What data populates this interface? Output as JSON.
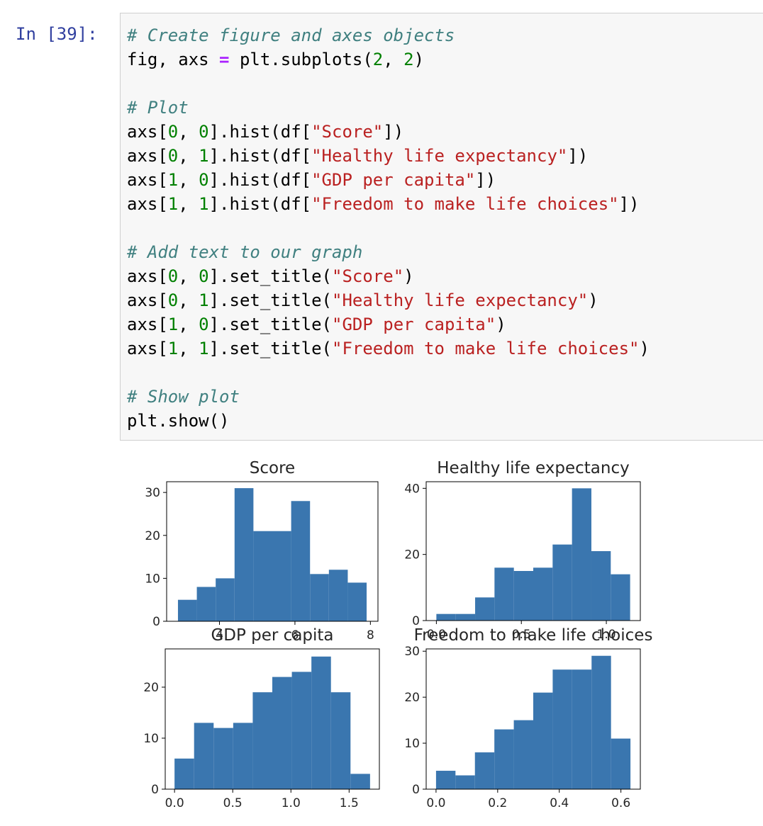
{
  "cell": {
    "prompt": "In [39]:",
    "lines": [
      [
        {
          "t": "cm",
          "v": "# Create figure and axes objects"
        }
      ],
      [
        {
          "t": "n",
          "v": "fig, axs "
        },
        {
          "t": "op",
          "v": "="
        },
        {
          "t": "n",
          "v": " plt.subplots("
        },
        {
          "t": "num",
          "v": "2"
        },
        {
          "t": "n",
          "v": ", "
        },
        {
          "t": "num",
          "v": "2"
        },
        {
          "t": "n",
          "v": ")"
        }
      ],
      [],
      [
        {
          "t": "cm",
          "v": "# Plot"
        }
      ],
      [
        {
          "t": "n",
          "v": "axs["
        },
        {
          "t": "num",
          "v": "0"
        },
        {
          "t": "n",
          "v": ", "
        },
        {
          "t": "num",
          "v": "0"
        },
        {
          "t": "n",
          "v": "].hist(df["
        },
        {
          "t": "str",
          "v": "\"Score\""
        },
        {
          "t": "n",
          "v": "])"
        }
      ],
      [
        {
          "t": "n",
          "v": "axs["
        },
        {
          "t": "num",
          "v": "0"
        },
        {
          "t": "n",
          "v": ", "
        },
        {
          "t": "num",
          "v": "1"
        },
        {
          "t": "n",
          "v": "].hist(df["
        },
        {
          "t": "str",
          "v": "\"Healthy life expectancy\""
        },
        {
          "t": "n",
          "v": "])"
        }
      ],
      [
        {
          "t": "n",
          "v": "axs["
        },
        {
          "t": "num",
          "v": "1"
        },
        {
          "t": "n",
          "v": ", "
        },
        {
          "t": "num",
          "v": "0"
        },
        {
          "t": "n",
          "v": "].hist(df["
        },
        {
          "t": "str",
          "v": "\"GDP per capita\""
        },
        {
          "t": "n",
          "v": "])"
        }
      ],
      [
        {
          "t": "n",
          "v": "axs["
        },
        {
          "t": "num",
          "v": "1"
        },
        {
          "t": "n",
          "v": ", "
        },
        {
          "t": "num",
          "v": "1"
        },
        {
          "t": "n",
          "v": "].hist(df["
        },
        {
          "t": "str",
          "v": "\"Freedom to make life choices\""
        },
        {
          "t": "n",
          "v": "])"
        }
      ],
      [],
      [
        {
          "t": "cm",
          "v": "# Add text to our graph"
        }
      ],
      [
        {
          "t": "n",
          "v": "axs["
        },
        {
          "t": "num",
          "v": "0"
        },
        {
          "t": "n",
          "v": ", "
        },
        {
          "t": "num",
          "v": "0"
        },
        {
          "t": "n",
          "v": "].set_title("
        },
        {
          "t": "str",
          "v": "\"Score\""
        },
        {
          "t": "n",
          "v": ")"
        }
      ],
      [
        {
          "t": "n",
          "v": "axs["
        },
        {
          "t": "num",
          "v": "0"
        },
        {
          "t": "n",
          "v": ", "
        },
        {
          "t": "num",
          "v": "1"
        },
        {
          "t": "n",
          "v": "].set_title("
        },
        {
          "t": "str",
          "v": "\"Healthy life expectancy\""
        },
        {
          "t": "n",
          "v": ")"
        }
      ],
      [
        {
          "t": "n",
          "v": "axs["
        },
        {
          "t": "num",
          "v": "1"
        },
        {
          "t": "n",
          "v": ", "
        },
        {
          "t": "num",
          "v": "0"
        },
        {
          "t": "n",
          "v": "].set_title("
        },
        {
          "t": "str",
          "v": "\"GDP per capita\""
        },
        {
          "t": "n",
          "v": ")"
        }
      ],
      [
        {
          "t": "n",
          "v": "axs["
        },
        {
          "t": "num",
          "v": "1"
        },
        {
          "t": "n",
          "v": ", "
        },
        {
          "t": "num",
          "v": "1"
        },
        {
          "t": "n",
          "v": "].set_title("
        },
        {
          "t": "str",
          "v": "\"Freedom to make life choices\""
        },
        {
          "t": "n",
          "v": ")"
        }
      ],
      [],
      [
        {
          "t": "cm",
          "v": "# Show plot"
        }
      ],
      [
        {
          "t": "n",
          "v": "plt.show()"
        }
      ]
    ]
  },
  "colors": {
    "bar": "#3a76af",
    "prompt": "#303f9f",
    "comment": "#408080",
    "string": "#ba2121",
    "number": "#008000",
    "operator": "#aa22ff"
  },
  "chart_data": [
    {
      "type": "bar",
      "title": "Score",
      "bin_edges": [
        2.9,
        3.4,
        3.9,
        4.4,
        4.9,
        5.4,
        5.9,
        6.4,
        6.9,
        7.4,
        7.9
      ],
      "values": [
        5,
        8,
        10,
        31,
        21,
        21,
        28,
        11,
        12,
        9
      ],
      "xlim": [
        2.6,
        8.2
      ],
      "ylim": [
        0,
        32.5
      ],
      "xticks": [
        "4",
        "6",
        "8"
      ],
      "xtick_values": [
        4,
        6,
        8
      ],
      "yticks": [
        "0",
        "10",
        "20",
        "30"
      ],
      "ytick_values": [
        0,
        10,
        20,
        30
      ]
    },
    {
      "type": "bar",
      "title": "Healthy life expectancy",
      "bin_edges": [
        0.0,
        0.114,
        0.228,
        0.342,
        0.456,
        0.57,
        0.684,
        0.798,
        0.912,
        1.026,
        1.14
      ],
      "values": [
        2,
        2,
        7,
        16,
        15,
        16,
        23,
        40,
        21,
        14
      ],
      "xlim": [
        -0.06,
        1.2
      ],
      "ylim": [
        0,
        42
      ],
      "xticks": [
        "0.0",
        "0.5",
        "1.0"
      ],
      "xtick_values": [
        0,
        0.5,
        1.0
      ],
      "yticks": [
        "0",
        "20",
        "40"
      ],
      "ytick_values": [
        0,
        20,
        40
      ]
    },
    {
      "type": "bar",
      "title": "GDP per capita",
      "bin_edges": [
        0.0,
        0.168,
        0.336,
        0.504,
        0.672,
        0.84,
        1.008,
        1.176,
        1.344,
        1.512,
        1.68
      ],
      "values": [
        6,
        13,
        12,
        13,
        19,
        22,
        23,
        26,
        19,
        3
      ],
      "xlim": [
        -0.08,
        1.76
      ],
      "ylim": [
        0,
        27.5
      ],
      "xticks": [
        "0.0",
        "0.5",
        "1.0",
        "1.5"
      ],
      "xtick_values": [
        0,
        0.5,
        1.0,
        1.5
      ],
      "yticks": [
        "0",
        "10",
        "20"
      ],
      "ytick_values": [
        0,
        10,
        20
      ]
    },
    {
      "type": "bar",
      "title": "Freedom to make life choices",
      "bin_edges": [
        0.0,
        0.0631,
        0.1262,
        0.1893,
        0.2524,
        0.3155,
        0.3786,
        0.4417,
        0.5048,
        0.5679,
        0.631
      ],
      "values": [
        4,
        3,
        8,
        13,
        15,
        21,
        26,
        26,
        29,
        11
      ],
      "xlim": [
        -0.032,
        0.663
      ],
      "ylim": [
        0,
        30.5
      ],
      "xticks": [
        "0.0",
        "0.2",
        "0.4",
        "0.6"
      ],
      "xtick_values": [
        0,
        0.2,
        0.4,
        0.6
      ],
      "yticks": [
        "0",
        "10",
        "20",
        "30"
      ],
      "ytick_values": [
        0,
        10,
        20,
        30
      ]
    }
  ]
}
